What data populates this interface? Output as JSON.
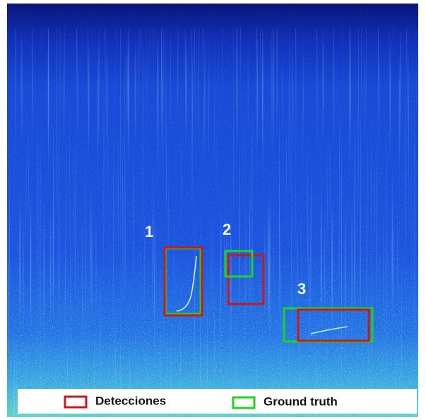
{
  "labels": [
    "1",
    "2",
    "3"
  ],
  "legend": {
    "items": [
      "Detecciones",
      "Ground truth"
    ]
  }
}
